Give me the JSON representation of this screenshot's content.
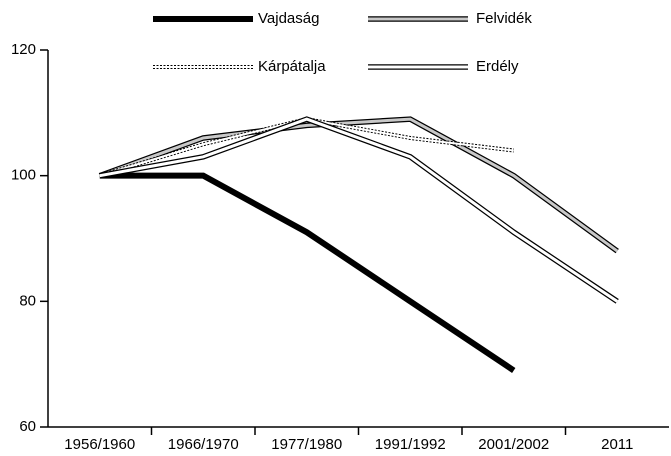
{
  "chart_data": {
    "type": "line",
    "categories": [
      "1956/1960",
      "1966/1970",
      "1977/1980",
      "1991/1992",
      "2001/2002",
      "2011"
    ],
    "series": [
      {
        "name": "Vajdaság",
        "color": "#000000",
        "values": [
          100,
          100,
          91,
          80,
          69,
          null
        ]
      },
      {
        "name": "Felvidék",
        "color": "#c8c8c8",
        "values": [
          100,
          106,
          108,
          109,
          100,
          88
        ]
      },
      {
        "name": "Kárpátalja",
        "color": "#ffffff",
        "dashed": true,
        "values": [
          100,
          105,
          109,
          106,
          104,
          null
        ]
      },
      {
        "name": "Erdély",
        "color": "#ffffff",
        "values": [
          100,
          103,
          109,
          103,
          91,
          80
        ]
      }
    ],
    "ylim": [
      60,
      120
    ],
    "yticks": [
      60,
      80,
      100,
      120
    ],
    "grid": false
  }
}
